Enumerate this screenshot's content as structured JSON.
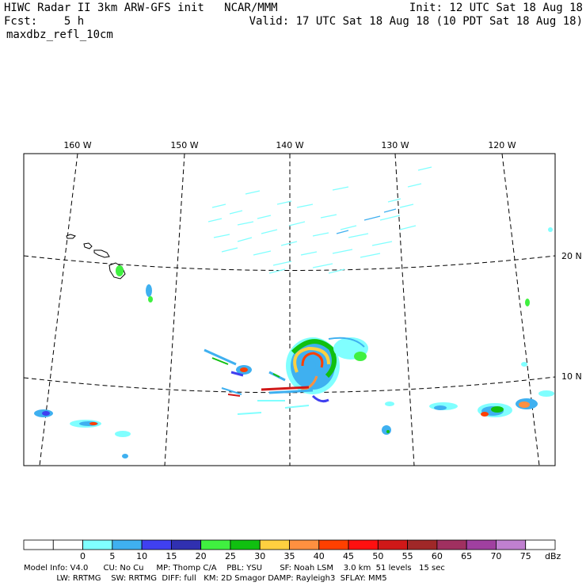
{
  "header": {
    "line1_left": "HIWC Radar II 3km ARW-GFS init   NCAR/MMM",
    "line1_right": "Init: 12 UTC Sat 18 Aug 18",
    "fcst": "Fcst:    5 h",
    "valid": "Valid: 17 UTC Sat 18 Aug 18 (10 PDT Sat 18 Aug 18)",
    "field": "maxdbz_refl_10cm"
  },
  "map": {
    "lon_labels": [
      "160 W",
      "150 W",
      "140 W",
      "130 W",
      "120 W"
    ],
    "lat_labels": [
      "20 N",
      "10 N"
    ]
  },
  "colorbar": {
    "colors": [
      "#ffffff",
      "#ffffff",
      "#80ffff",
      "#3fb0f0",
      "#4040f0",
      "#3030b0",
      "#40f040",
      "#10c010",
      "#ffd040",
      "#ff9040",
      "#ff4000",
      "#ff1010",
      "#d01818",
      "#a02828",
      "#a03060",
      "#a040a0",
      "#c080d0",
      "#ffffff"
    ],
    "ticks": [
      "0",
      "5",
      "10",
      "15",
      "20",
      "25",
      "30",
      "35",
      "40",
      "45",
      "50",
      "55",
      "60",
      "65",
      "70",
      "75"
    ],
    "unit": "dBz"
  },
  "footer": {
    "line1": "Model Info: V4.0      CU: No Cu     MP: Thomp C/A    PBL: YSU       SF: Noah LSM    3.0 km  51 levels   15 sec",
    "line2": "             LW: RRTMG    SW: RRTMG  DIFF: full   KM: 2D Smagor DAMP: Rayleigh3  SFLAY: MM5"
  }
}
